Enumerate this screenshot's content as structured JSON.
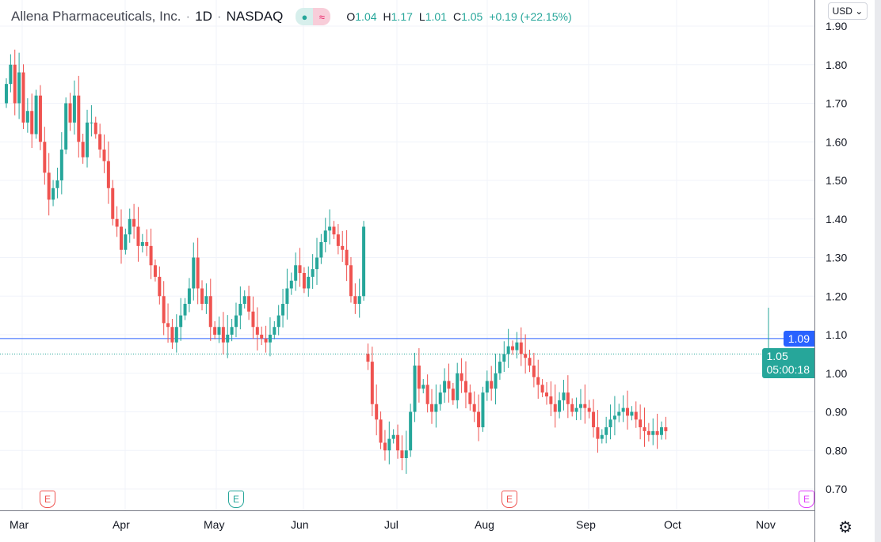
{
  "header": {
    "title": "Allena Pharmaceuticals, Inc.",
    "separator": "·",
    "interval": "1D",
    "exchange": "NASDAQ",
    "o_label": "O",
    "o": "1.04",
    "h_label": "H",
    "h": "1.17",
    "l_label": "L",
    "l": "1.01",
    "c_label": "C",
    "c": "1.05",
    "change": "+0.19 (+22.15%)"
  },
  "currency": "USD ⌄",
  "price_axis": [
    "1.90",
    "1.80",
    "1.70",
    "1.60",
    "1.50",
    "1.40",
    "1.30",
    "1.20",
    "1.10",
    "1.00",
    "0.90",
    "0.80",
    "0.70"
  ],
  "time_axis": [
    "Mar",
    "Apr",
    "May",
    "Jun",
    "Jul",
    "Aug",
    "Sep",
    "Oct",
    "Nov"
  ],
  "hline_price": "1.09",
  "last_price": "1.05",
  "countdown": "05:00:18",
  "earnings": [
    {
      "label": "E",
      "color": "#ef5350"
    },
    {
      "label": "E",
      "color": "#26a69a"
    },
    {
      "label": "E",
      "color": "#ef5350"
    },
    {
      "label": "E",
      "color": "#e040fb"
    }
  ],
  "colors": {
    "up": "#26a69a",
    "down": "#ef5350",
    "hline": "#2962ff"
  },
  "chart_data": {
    "type": "candlestick",
    "ylim": [
      0.66,
      1.92
    ],
    "first_open": 1.7,
    "closes": [
      1.75,
      1.8,
      1.7,
      1.78,
      1.65,
      1.68,
      1.62,
      1.72,
      1.6,
      1.52,
      1.45,
      1.48,
      1.5,
      1.58,
      1.7,
      1.65,
      1.72,
      1.6,
      1.56,
      1.65,
      1.65,
      1.62,
      1.58,
      1.55,
      1.48,
      1.4,
      1.38,
      1.32,
      1.36,
      1.4,
      1.38,
      1.33,
      1.34,
      1.33,
      1.28,
      1.25,
      1.2,
      1.13,
      1.12,
      1.08,
      1.12,
      1.15,
      1.18,
      1.22,
      1.3,
      1.22,
      1.18,
      1.2,
      1.12,
      1.1,
      1.12,
      1.08,
      1.1,
      1.12,
      1.15,
      1.18,
      1.2,
      1.16,
      1.12,
      1.1,
      1.09,
      1.08,
      1.1,
      1.12,
      1.15,
      1.18,
      1.22,
      1.24,
      1.28,
      1.26,
      1.22,
      1.25,
      1.27,
      1.3,
      1.34,
      1.37,
      1.38,
      1.36,
      1.33,
      1.32,
      1.28,
      1.2,
      1.18,
      1.2,
      1.38,
      1.03,
      0.92,
      0.88,
      0.82,
      0.8,
      0.83,
      0.84,
      0.8,
      0.78,
      0.8,
      0.9,
      1.02,
      0.96,
      0.97,
      0.92,
      0.9,
      0.92,
      0.95,
      0.98,
      0.96,
      0.93,
      1.0,
      0.98,
      0.95,
      0.92,
      0.9,
      0.86,
      0.95,
      0.98,
      0.96,
      1.0,
      1.03,
      1.05,
      1.07,
      1.06,
      1.08,
      1.05,
      1.04,
      1.02,
      0.99,
      0.97,
      0.95,
      0.94,
      0.92,
      0.9,
      0.93,
      0.95,
      0.92,
      0.9,
      0.91,
      0.92,
      0.91,
      0.9,
      0.86,
      0.83,
      0.84,
      0.86,
      0.88,
      0.89,
      0.9,
      0.91,
      0.89,
      0.9,
      0.88,
      0.86,
      0.85,
      0.84,
      0.85,
      0.84,
      0.86,
      0.85
    ],
    "last_candle": {
      "o": 1.04,
      "h": 1.17,
      "l": 1.01,
      "c": 1.05
    }
  }
}
